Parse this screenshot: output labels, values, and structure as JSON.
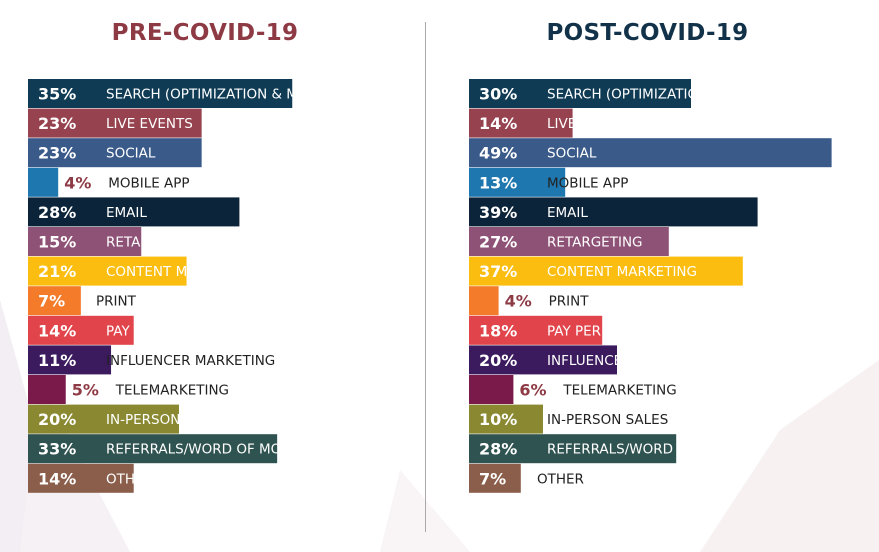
{
  "colors": {
    "pre_title": "#8e3a45",
    "post_title": "#12324a",
    "label_text": "#222222",
    "small_value_text": "#8e3a45"
  },
  "chart_data": [
    {
      "type": "bar",
      "orientation": "horizontal",
      "title": "PRE-COVID-19",
      "unit": "%",
      "categories": [
        "SEARCH (OPTIMIZATION & MARKETING)",
        "LIVE EVENTS",
        "SOCIAL",
        "MOBILE APP",
        "EMAIL",
        "RETARGETING",
        "CONTENT MARKETING",
        "PRINT",
        "PAY PER CLICK/DISPLAY ADS",
        "INFLUENCER MARKETING",
        "TELEMARKETING",
        "IN-PERSON SALES",
        "REFERRALS/WORD OF MOUTH",
        "OTHER"
      ],
      "values": [
        35,
        23,
        23,
        4,
        28,
        15,
        21,
        7,
        14,
        11,
        5,
        20,
        33,
        14
      ],
      "colors": [
        "#0f3b55",
        "#96434f",
        "#3a5a8a",
        "#1e77ae",
        "#0c2439",
        "#8e5276",
        "#fbbd10",
        "#f47b2a",
        "#e1444a",
        "#3b1a5e",
        "#7a1a4a",
        "#8a8932",
        "#2f5350",
        "#8a5e4a"
      ]
    },
    {
      "type": "bar",
      "orientation": "horizontal",
      "title": "POST-COVID-19",
      "unit": "%",
      "categories": [
        "SEARCH (OPTIMIZATION & MARKETING)",
        "LIVE EVENTS",
        "SOCIAL",
        "MOBILE APP",
        "EMAIL",
        "RETARGETING",
        "CONTENT MARKETING",
        "PRINT",
        "PAY PER CLICK/DISPLAY ADS",
        "INFLUENCER MARKETING",
        "TELEMARKETING",
        "IN-PERSON SALES",
        "REFERRALS/WORD OF MOUTH",
        "OTHER"
      ],
      "values": [
        30,
        14,
        49,
        13,
        39,
        27,
        37,
        4,
        18,
        20,
        6,
        10,
        28,
        7
      ],
      "colors": [
        "#0f3b55",
        "#96434f",
        "#3a5a8a",
        "#1e77ae",
        "#0c2439",
        "#8e5276",
        "#fbbd10",
        "#f47b2a",
        "#e1444a",
        "#3b1a5e",
        "#7a1a4a",
        "#8a8932",
        "#2f5350",
        "#8a5e4a"
      ]
    }
  ]
}
